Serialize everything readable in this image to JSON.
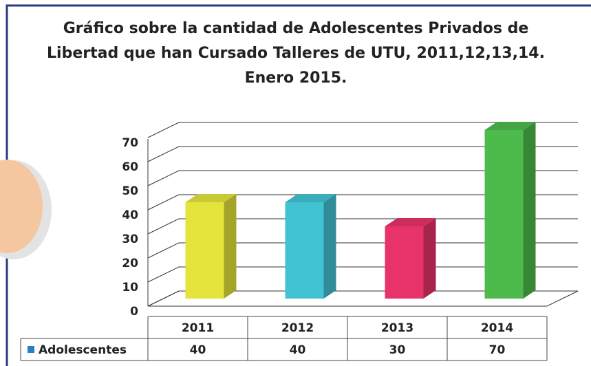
{
  "chart_data": {
    "type": "bar3d",
    "title": "Gráfico sobre la cantidad de Adolescentes Privados de Libertad  que han Cursado Talleres de UTU, 2011,12,13,14. Enero 2015.",
    "categories": [
      "2011",
      "2012",
      "2013",
      "2014"
    ],
    "series": [
      {
        "name": "Adolescentes",
        "color": "#2a7fc0",
        "values": [
          40,
          40,
          30,
          70
        ]
      }
    ],
    "bar_colors": [
      "#e4e43c",
      "#42c3d3",
      "#e8336a",
      "#4cbb4c"
    ],
    "ylim": [
      0,
      70
    ],
    "yticks": [
      0,
      10,
      20,
      30,
      40,
      50,
      60,
      70
    ],
    "grid": true,
    "data_table": true
  }
}
